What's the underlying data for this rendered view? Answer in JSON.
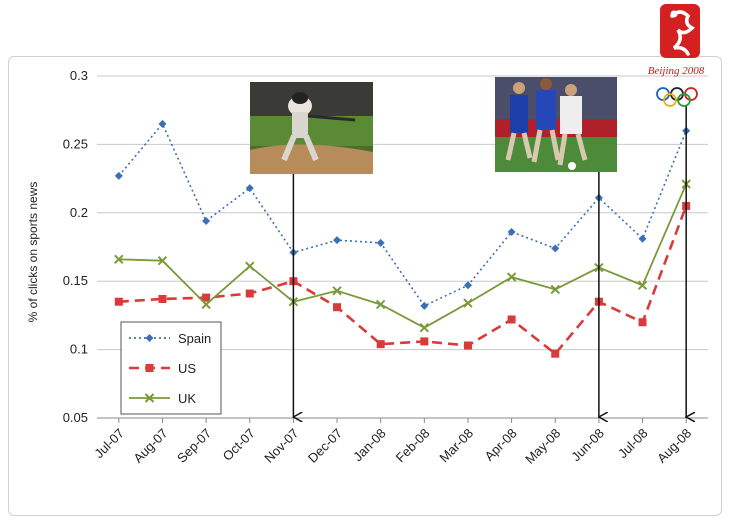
{
  "chart_data": {
    "type": "line",
    "title": "",
    "xlabel": "",
    "ylabel": "% of clicks on sports news",
    "ylim": [
      0.05,
      0.3
    ],
    "yticks": [
      0.05,
      0.1,
      0.15,
      0.2,
      0.25,
      0.3
    ],
    "ytick_labels": [
      "0.05",
      "0.1",
      "0.15",
      "0.2",
      "0.25",
      "0.3"
    ],
    "grid": true,
    "legend_position": "bottom-left",
    "categories": [
      "Jul-07",
      "Aug-07",
      "Sep-07",
      "Oct-07",
      "Nov-07",
      "Dec-07",
      "Jan-08",
      "Feb-08",
      "Mar-08",
      "Apr-08",
      "May-08",
      "Jun-08",
      "Jul-08",
      "Aug-08"
    ],
    "series": [
      {
        "name": "Spain",
        "color": "#3d6fb6",
        "style": "dotted",
        "marker": "diamond",
        "values": [
          0.227,
          0.265,
          0.194,
          0.218,
          0.171,
          0.18,
          0.178,
          0.132,
          0.147,
          0.186,
          0.174,
          0.211,
          0.181,
          0.26
        ]
      },
      {
        "name": "US",
        "color": "#d93a3a",
        "style": "dashed",
        "marker": "square",
        "values": [
          0.135,
          0.137,
          0.138,
          0.141,
          0.15,
          0.131,
          0.104,
          0.106,
          0.103,
          0.122,
          0.097,
          0.135,
          0.12,
          0.205
        ]
      },
      {
        "name": "UK",
        "color": "#7a9a3a",
        "style": "solid",
        "marker": "x",
        "values": [
          0.166,
          0.165,
          0.133,
          0.161,
          0.135,
          0.143,
          0.133,
          0.116,
          0.134,
          0.153,
          0.144,
          0.16,
          0.147,
          0.221
        ]
      }
    ],
    "annotations": [
      {
        "category": "Nov-07",
        "image": "baseball-photo"
      },
      {
        "category": "Jun-08",
        "image": "soccer-photo"
      },
      {
        "category": "Aug-08",
        "image": "beijing-olympics-logo"
      }
    ]
  },
  "logo": {
    "text": "Beijing 2008",
    "color": "#cc1a1a"
  }
}
